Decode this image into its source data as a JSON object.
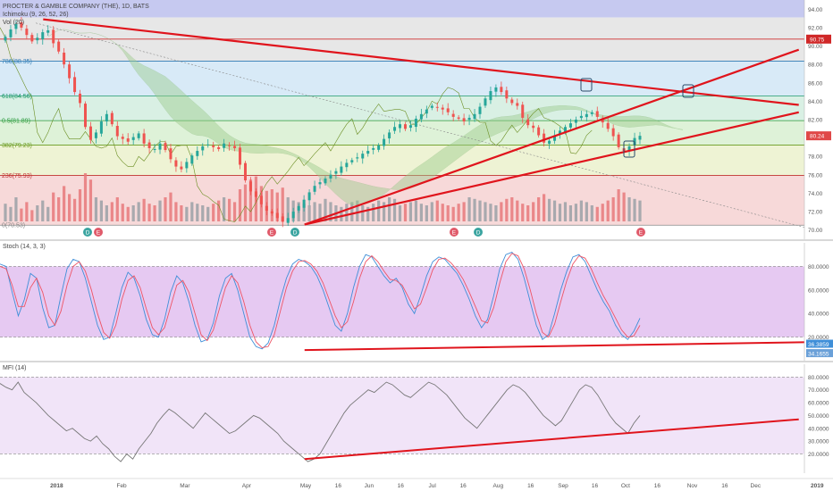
{
  "header": {
    "title": "PROCTER & GAMBLE COMPANY (THE), 1D, BATS",
    "ichimoku": "Ichimoku (9, 26, 52, 26)",
    "vol": "Vol (20)"
  },
  "colors": {
    "up": "#26a69a",
    "down": "#ef5350",
    "trend": "#e0141c",
    "stoch_k": "#3f8fd8",
    "stoch_d": "#ee5566",
    "mfi": "#777777"
  },
  "chart_data": [
    {
      "type": "candlestick",
      "title": "PROCTER & GAMBLE COMPANY (THE), 1D, BATS",
      "ylim": [
        69,
        95
      ],
      "y_ticks": [
        "94.00",
        "92.00",
        "90.00",
        "88.00",
        "86.00",
        "84.00",
        "82.00",
        "80.00",
        "78.00",
        "76.00",
        "74.00",
        "72.00",
        "70.00"
      ],
      "price_tags": {
        "upper": "90.75",
        "last": "80.24"
      },
      "fib_levels": [
        {
          "label": "786(88.35)",
          "value": 88.35,
          "color": "#2c7bb6"
        },
        {
          "label": "618(84.56)",
          "value": 84.56,
          "color": "#1e9a6a"
        },
        {
          "label": "0.5(81.89)",
          "value": 81.89,
          "color": "#2a9a3a"
        },
        {
          "label": "382(79.23)",
          "value": 79.23,
          "color": "#6a9a1e"
        },
        {
          "label": "236(75.93)",
          "value": 75.93,
          "color": "#c03030"
        },
        {
          "label": "0(70.53)",
          "value": 70.53,
          "color": "#888888"
        }
      ],
      "resistance_level": 90.75,
      "close_series": [
        91.0,
        91.8,
        92.4,
        92.0,
        91.2,
        90.5,
        90.9,
        91.5,
        91.7,
        90.3,
        89.4,
        88.0,
        86.5,
        85.0,
        83.8,
        81.2,
        79.8,
        80.6,
        81.8,
        82.6,
        81.5,
        80.2,
        79.9,
        79.6,
        80.1,
        80.5,
        79.4,
        78.9,
        78.8,
        79.4,
        78.7,
        77.7,
        76.9,
        76.6,
        77.4,
        78.1,
        78.6,
        79.1,
        79.3,
        79.0,
        78.8,
        79.4,
        79.2,
        78.9,
        77.1,
        75.4,
        74.2,
        73.6,
        72.8,
        72.1,
        71.8,
        71.3,
        70.9,
        71.3,
        72.0,
        72.6,
        73.3,
        74.1,
        74.8,
        75.2,
        75.6,
        76.0,
        76.4,
        76.9,
        77.3,
        77.6,
        77.9,
        78.3,
        78.6,
        78.9,
        79.2,
        79.9,
        80.6,
        81.2,
        81.5,
        81.0,
        81.4,
        82.1,
        82.6,
        83.1,
        83.5,
        83.3,
        83.1,
        82.8,
        82.3,
        82.1,
        81.8,
        82.2,
        82.6,
        83.4,
        84.3,
        85.1,
        85.5,
        85.0,
        84.3,
        83.8,
        83.5,
        82.2,
        81.4,
        81.1,
        80.3,
        79.5,
        79.7,
        80.3,
        80.8,
        81.2,
        81.6,
        82.0,
        82.4,
        82.6,
        82.8,
        82.3,
        81.7,
        81.0,
        80.2,
        79.0,
        78.6,
        79.1,
        80.0,
        80.24
      ],
      "trendlines": [
        {
          "name": "descending",
          "from": [
            "2017-12-26",
            92.9
          ],
          "to": [
            "2018-12-31",
            83.6
          ]
        },
        {
          "name": "ascending-support",
          "from": [
            "2018-05-03",
            70.6
          ],
          "to": [
            "2018-12-31",
            82.8
          ]
        },
        {
          "name": "ascending-steep",
          "from": [
            "2018-05-03",
            70.6
          ],
          "to": [
            "2018-12-31",
            89.6
          ]
        }
      ],
      "event_markers": [
        "D",
        "E",
        "E",
        "D",
        "E",
        "D",
        "E"
      ]
    },
    {
      "type": "line",
      "title": "Stoch (14, 3, 3)",
      "ylim": [
        0,
        100
      ],
      "y_ticks": [
        "80.0000",
        "60.0000",
        "40.0000",
        "20.0000"
      ],
      "bands": [
        20,
        80
      ],
      "last_values": {
        "k": "36.3859",
        "d": "34.1655"
      },
      "series": [
        {
          "name": "%K",
          "values": [
            82,
            80,
            58,
            38,
            52,
            74,
            70,
            45,
            28,
            30,
            55,
            78,
            86,
            84,
            70,
            50,
            30,
            18,
            20,
            40,
            62,
            75,
            70,
            55,
            35,
            22,
            20,
            35,
            58,
            72,
            66,
            50,
            30,
            16,
            18,
            32,
            55,
            70,
            74,
            60,
            40,
            20,
            12,
            10,
            15,
            30,
            52,
            70,
            82,
            86,
            84,
            80,
            72,
            60,
            45,
            30,
            25,
            40,
            62,
            80,
            90,
            88,
            80,
            72,
            66,
            70,
            62,
            48,
            40,
            55,
            72,
            84,
            88,
            86,
            80,
            74,
            64,
            52,
            38,
            28,
            35,
            55,
            78,
            90,
            92,
            86,
            70,
            50,
            30,
            18,
            22,
            40,
            60,
            76,
            88,
            90,
            84,
            72,
            60,
            50,
            42,
            30,
            22,
            18,
            25,
            36
          ]
        },
        {
          "name": "%D",
          "values": [
            80,
            78,
            64,
            46,
            46,
            62,
            70,
            58,
            38,
            30,
            42,
            64,
            80,
            84,
            76,
            60,
            40,
            24,
            19,
            30,
            52,
            68,
            72,
            62,
            44,
            28,
            22,
            28,
            46,
            64,
            68,
            58,
            40,
            22,
            17,
            26,
            44,
            62,
            72,
            66,
            50,
            30,
            16,
            11,
            12,
            22,
            42,
            62,
            76,
            84,
            85,
            82,
            76,
            66,
            52,
            38,
            28,
            33,
            50,
            70,
            84,
            89,
            84,
            76,
            69,
            68,
            64,
            54,
            44,
            48,
            62,
            77,
            86,
            87,
            83,
            77,
            69,
            58,
            46,
            34,
            32,
            45,
            66,
            84,
            91,
            89,
            78,
            60,
            40,
            24,
            20,
            31,
            50,
            68,
            82,
            89,
            87,
            78,
            66,
            55,
            46,
            36,
            26,
            20,
            21,
            30
          ]
        }
      ]
    },
    {
      "type": "line",
      "title": "MFI (14)",
      "ylim": [
        5,
        90
      ],
      "y_ticks": [
        "80.0000",
        "70.0000",
        "60.0000",
        "50.0000",
        "40.0000",
        "30.0000",
        "20.0000"
      ],
      "bands": [
        20,
        80
      ],
      "series": [
        {
          "name": "MFI",
          "values": [
            75,
            72,
            70,
            76,
            68,
            64,
            60,
            55,
            50,
            46,
            42,
            38,
            40,
            36,
            32,
            30,
            34,
            28,
            24,
            18,
            14,
            20,
            16,
            24,
            30,
            36,
            44,
            50,
            55,
            52,
            48,
            44,
            40,
            46,
            52,
            48,
            44,
            40,
            36,
            38,
            42,
            46,
            50,
            48,
            44,
            40,
            36,
            30,
            26,
            22,
            18,
            14,
            16,
            20,
            28,
            36,
            44,
            52,
            58,
            62,
            66,
            70,
            68,
            72,
            76,
            74,
            70,
            66,
            64,
            68,
            72,
            76,
            74,
            70,
            66,
            60,
            54,
            48,
            44,
            40,
            46,
            52,
            58,
            64,
            70,
            74,
            72,
            68,
            62,
            56,
            50,
            46,
            42,
            46,
            54,
            62,
            70,
            74,
            72,
            66,
            58,
            50,
            44,
            40,
            36,
            44,
            50
          ]
        }
      ],
      "trendline": {
        "from": [
          "2018-05-03",
          16
        ],
        "to": [
          "2018-12-31",
          47
        ]
      }
    }
  ],
  "x_axis": {
    "labels": [
      {
        "text": "2018",
        "bold": true,
        "pos": 0.068
      },
      {
        "text": "Feb",
        "bold": false,
        "pos": 0.146
      },
      {
        "text": "Mar",
        "bold": false,
        "pos": 0.222
      },
      {
        "text": "Apr",
        "bold": false,
        "pos": 0.296
      },
      {
        "text": "May",
        "bold": false,
        "pos": 0.367
      },
      {
        "text": "16",
        "bold": false,
        "pos": 0.406
      },
      {
        "text": "Jun",
        "bold": false,
        "pos": 0.443
      },
      {
        "text": "16",
        "bold": false,
        "pos": 0.481
      },
      {
        "text": "Jul",
        "bold": false,
        "pos": 0.519
      },
      {
        "text": "16",
        "bold": false,
        "pos": 0.556
      },
      {
        "text": "Aug",
        "bold": false,
        "pos": 0.598
      },
      {
        "text": "16",
        "bold": false,
        "pos": 0.637
      },
      {
        "text": "Sep",
        "bold": false,
        "pos": 0.676
      },
      {
        "text": "16",
        "bold": false,
        "pos": 0.714
      },
      {
        "text": "Oct",
        "bold": false,
        "pos": 0.751
      },
      {
        "text": "16",
        "bold": false,
        "pos": 0.789
      },
      {
        "text": "Nov",
        "bold": false,
        "pos": 0.831
      },
      {
        "text": "16",
        "bold": false,
        "pos": 0.87
      },
      {
        "text": "Dec",
        "bold": false,
        "pos": 0.907
      },
      {
        "text": "2019",
        "bold": true,
        "pos": 0.981
      }
    ]
  }
}
